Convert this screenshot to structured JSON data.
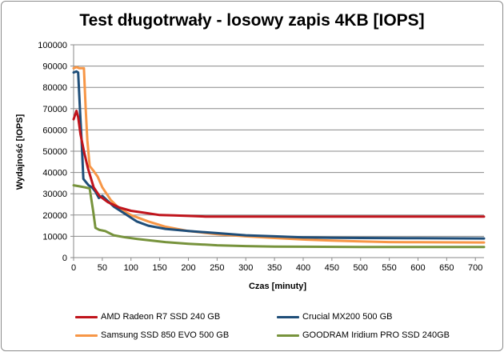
{
  "chart_data": {
    "type": "line",
    "title": "Test długotrwały - losowy zapis 4KB [IOPS]",
    "xlabel": "Czas [minuty]",
    "ylabel": "Wydajność [IOPS]",
    "xlim": [
      0,
      715
    ],
    "ylim": [
      0,
      100000
    ],
    "x_ticks": [
      0,
      50,
      100,
      150,
      200,
      250,
      300,
      350,
      400,
      450,
      500,
      550,
      600,
      650,
      700
    ],
    "y_ticks": [
      0,
      10000,
      20000,
      30000,
      40000,
      50000,
      60000,
      70000,
      80000,
      90000,
      100000
    ],
    "grid": "horizontal",
    "legend_position": "bottom",
    "series": [
      {
        "name": "AMD Radeon R7 SSD 240 GB",
        "color": "#c0141c",
        "points": [
          [
            0,
            65000
          ],
          [
            5,
            69000
          ],
          [
            8,
            66000
          ],
          [
            12,
            58000
          ],
          [
            18,
            50000
          ],
          [
            25,
            42000
          ],
          [
            35,
            33000
          ],
          [
            45,
            29000
          ],
          [
            60,
            26000
          ],
          [
            80,
            23500
          ],
          [
            100,
            22000
          ],
          [
            125,
            21000
          ],
          [
            150,
            20000
          ],
          [
            175,
            19800
          ],
          [
            200,
            19600
          ],
          [
            230,
            19300
          ],
          [
            300,
            19300
          ],
          [
            400,
            19300
          ],
          [
            500,
            19300
          ],
          [
            600,
            19300
          ],
          [
            715,
            19300
          ]
        ]
      },
      {
        "name": "Crucial MX200 500 GB",
        "color": "#1f4e79",
        "points": [
          [
            0,
            87000
          ],
          [
            5,
            87500
          ],
          [
            8,
            87000
          ],
          [
            11,
            70000
          ],
          [
            14,
            55000
          ],
          [
            17,
            37000
          ],
          [
            20,
            36000
          ],
          [
            26,
            34000
          ],
          [
            32,
            33000
          ],
          [
            38,
            31000
          ],
          [
            44,
            28000
          ],
          [
            50,
            29000
          ],
          [
            58,
            27000
          ],
          [
            70,
            24000
          ],
          [
            90,
            20500
          ],
          [
            110,
            17000
          ],
          [
            130,
            15000
          ],
          [
            160,
            13500
          ],
          [
            200,
            12500
          ],
          [
            250,
            11500
          ],
          [
            300,
            10500
          ],
          [
            350,
            10000
          ],
          [
            400,
            9500
          ],
          [
            450,
            9300
          ],
          [
            500,
            9200
          ],
          [
            600,
            9100
          ],
          [
            715,
            9000
          ]
        ]
      },
      {
        "name": "Samsung SSD 850 EVO 500 GB",
        "color": "#f79646",
        "points": [
          [
            0,
            89000
          ],
          [
            5,
            89500
          ],
          [
            10,
            89000
          ],
          [
            18,
            89000
          ],
          [
            21,
            70000
          ],
          [
            24,
            55000
          ],
          [
            28,
            43000
          ],
          [
            34,
            41000
          ],
          [
            42,
            38000
          ],
          [
            50,
            33000
          ],
          [
            65,
            27000
          ],
          [
            80,
            23000
          ],
          [
            100,
            20000
          ],
          [
            130,
            17000
          ],
          [
            160,
            14500
          ],
          [
            200,
            12500
          ],
          [
            250,
            11000
          ],
          [
            300,
            10000
          ],
          [
            350,
            9200
          ],
          [
            400,
            8500
          ],
          [
            450,
            8000
          ],
          [
            500,
            7600
          ],
          [
            550,
            7300
          ],
          [
            600,
            7200
          ],
          [
            715,
            7100
          ]
        ]
      },
      {
        "name": "GOODRAM Iridium PRO SSD 240GB",
        "color": "#77933c",
        "points": [
          [
            0,
            34000
          ],
          [
            10,
            33500
          ],
          [
            20,
            33000
          ],
          [
            28,
            32500
          ],
          [
            34,
            22000
          ],
          [
            38,
            14000
          ],
          [
            45,
            13000
          ],
          [
            55,
            12500
          ],
          [
            70,
            10500
          ],
          [
            90,
            9500
          ],
          [
            110,
            8800
          ],
          [
            130,
            8200
          ],
          [
            160,
            7300
          ],
          [
            200,
            6500
          ],
          [
            250,
            5800
          ],
          [
            300,
            5400
          ],
          [
            350,
            5200
          ],
          [
            400,
            5100
          ],
          [
            500,
            5000
          ],
          [
            600,
            5000
          ],
          [
            715,
            5000
          ]
        ]
      }
    ]
  }
}
